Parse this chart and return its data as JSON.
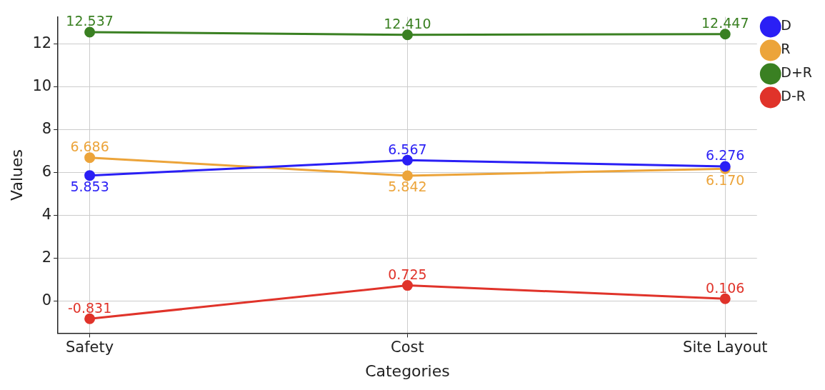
{
  "chart_data": {
    "type": "line",
    "xlabel": "Categories",
    "ylabel": "Values",
    "categories": [
      "Safety",
      "Cost",
      "Site Layout"
    ],
    "series": [
      {
        "name": "D",
        "color": "#2a1ff5",
        "values": [
          5.853,
          6.567,
          6.276
        ],
        "value_labels": [
          "5.853",
          "6.567",
          "6.276"
        ]
      },
      {
        "name": "R",
        "color": "#eca43a",
        "values": [
          6.686,
          5.842,
          6.17
        ],
        "value_labels": [
          "6.686",
          "5.842",
          "6.170"
        ]
      },
      {
        "name": "D+R",
        "color": "#3a8022",
        "values": [
          12.537,
          12.41,
          12.447
        ],
        "value_labels": [
          "12.537",
          "12.410",
          "12.447"
        ]
      },
      {
        "name": "D-R",
        "color": "#e0332a",
        "values": [
          -0.831,
          0.725,
          0.106
        ],
        "value_labels": [
          "-0.831",
          "0.725",
          "0.106"
        ]
      }
    ],
    "ylim": [
      -1.5,
      13.25
    ],
    "yticks": [
      0,
      2,
      4,
      6,
      8,
      10,
      12
    ],
    "grid": true,
    "legend": "top right",
    "marker": "circle",
    "line_style": "solid"
  }
}
